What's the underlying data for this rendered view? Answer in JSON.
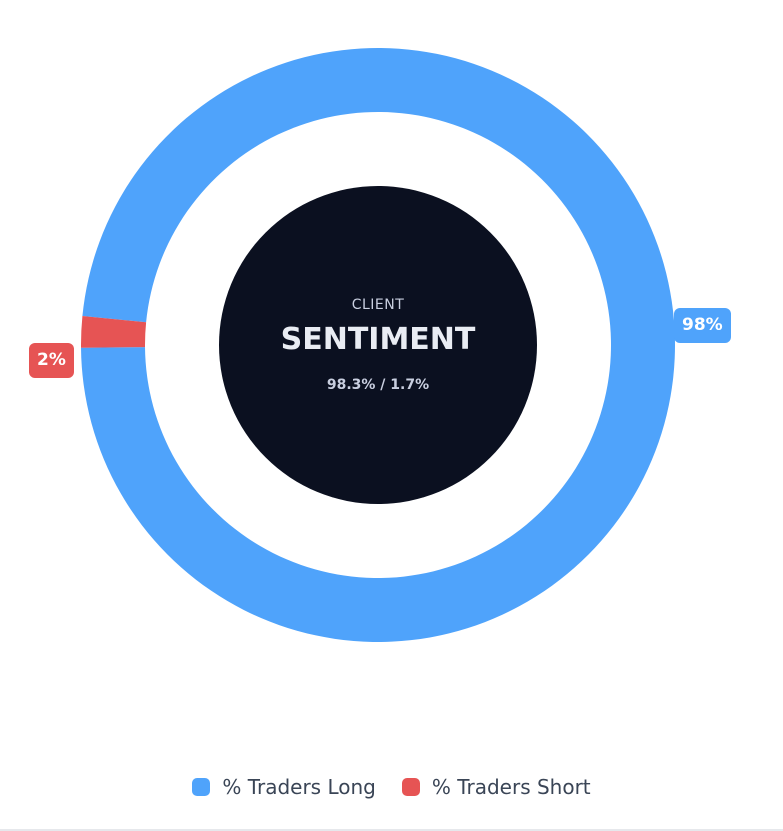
{
  "chart_data": {
    "type": "pie",
    "variant": "donut",
    "center": {
      "top_text": "CLIENT",
      "main_text": "SENTIMENT",
      "sub_text": "98.3% / 1.7%"
    },
    "slices": [
      {
        "name": "% Traders Long",
        "value": 98.3,
        "label": "98%",
        "color": "#4fa3fb"
      },
      {
        "name": "% Traders Short",
        "value": 1.7,
        "label": "2%",
        "color": "#e65454"
      }
    ],
    "legend_placement": "bottom",
    "center_color": "#0b1020"
  }
}
